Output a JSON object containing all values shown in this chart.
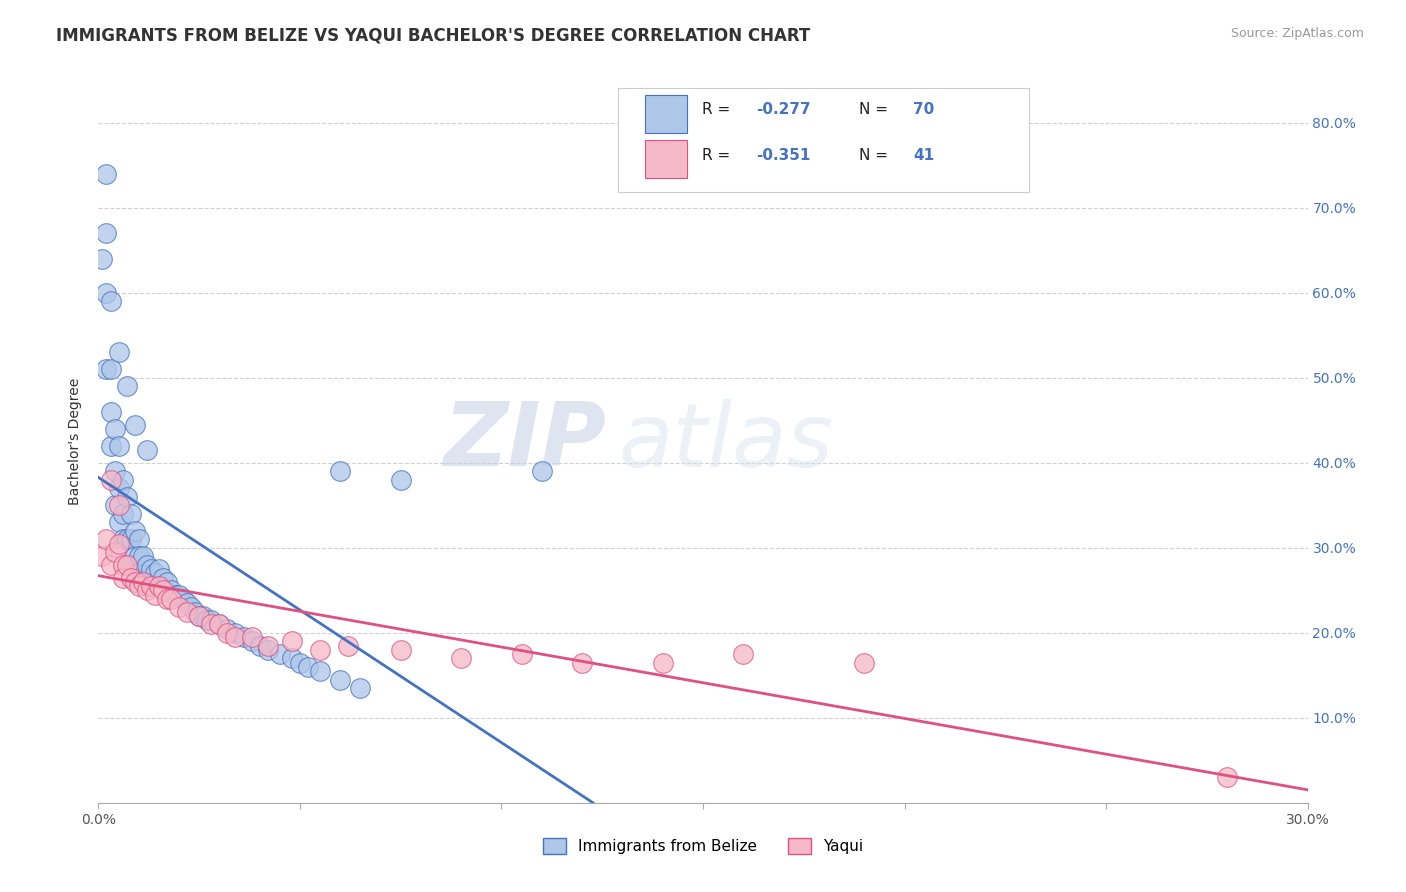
{
  "title": "IMMIGRANTS FROM BELIZE VS YAQUI BACHELOR'S DEGREE CORRELATION CHART",
  "source": "Source: ZipAtlas.com",
  "ylabel": "Bachelor's Degree",
  "watermark_zip": "ZIP",
  "watermark_atlas": "atlas",
  "legend_r1": "-0.277",
  "legend_n1": "70",
  "legend_r2": "-0.351",
  "legend_n2": "41",
  "xlim": [
    0.0,
    0.3
  ],
  "ylim": [
    0.0,
    0.85
  ],
  "color_belize": "#aec6e8",
  "color_yaqui": "#f4b8c8",
  "color_line_belize": "#4472c4",
  "color_line_yaqui": "#e05080",
  "label_belize": "Immigrants from Belize",
  "label_yaqui": "Yaqui",
  "belize_x": [
    0.001,
    0.002,
    0.002,
    0.003,
    0.003,
    0.003,
    0.004,
    0.004,
    0.004,
    0.005,
    0.005,
    0.005,
    0.006,
    0.006,
    0.006,
    0.007,
    0.007,
    0.008,
    0.008,
    0.008,
    0.009,
    0.009,
    0.01,
    0.01,
    0.01,
    0.011,
    0.011,
    0.012,
    0.012,
    0.013,
    0.014,
    0.015,
    0.015,
    0.016,
    0.017,
    0.018,
    0.019,
    0.02,
    0.021,
    0.022,
    0.023,
    0.024,
    0.025,
    0.026,
    0.027,
    0.028,
    0.03,
    0.032,
    0.034,
    0.036,
    0.038,
    0.04,
    0.042,
    0.045,
    0.048,
    0.05,
    0.052,
    0.055,
    0.06,
    0.065,
    0.002,
    0.003,
    0.005,
    0.007,
    0.009,
    0.012,
    0.002,
    0.075,
    0.11,
    0.06
  ],
  "belize_y": [
    0.64,
    0.6,
    0.51,
    0.51,
    0.46,
    0.42,
    0.44,
    0.39,
    0.35,
    0.42,
    0.37,
    0.33,
    0.38,
    0.34,
    0.31,
    0.36,
    0.31,
    0.34,
    0.31,
    0.28,
    0.32,
    0.29,
    0.31,
    0.29,
    0.27,
    0.29,
    0.26,
    0.28,
    0.255,
    0.275,
    0.27,
    0.275,
    0.255,
    0.265,
    0.26,
    0.25,
    0.245,
    0.245,
    0.24,
    0.235,
    0.23,
    0.225,
    0.22,
    0.22,
    0.215,
    0.215,
    0.21,
    0.205,
    0.2,
    0.195,
    0.19,
    0.185,
    0.18,
    0.175,
    0.17,
    0.165,
    0.16,
    0.155,
    0.145,
    0.135,
    0.67,
    0.59,
    0.53,
    0.49,
    0.445,
    0.415,
    0.74,
    0.38,
    0.39,
    0.39
  ],
  "yaqui_x": [
    0.001,
    0.002,
    0.003,
    0.003,
    0.004,
    0.005,
    0.005,
    0.006,
    0.006,
    0.007,
    0.008,
    0.009,
    0.01,
    0.011,
    0.012,
    0.013,
    0.014,
    0.015,
    0.016,
    0.017,
    0.018,
    0.02,
    0.022,
    0.025,
    0.028,
    0.03,
    0.032,
    0.034,
    0.038,
    0.042,
    0.048,
    0.055,
    0.062,
    0.075,
    0.09,
    0.105,
    0.12,
    0.14,
    0.16,
    0.19,
    0.28
  ],
  "yaqui_y": [
    0.29,
    0.31,
    0.28,
    0.38,
    0.295,
    0.305,
    0.35,
    0.28,
    0.265,
    0.28,
    0.265,
    0.26,
    0.255,
    0.26,
    0.25,
    0.255,
    0.245,
    0.255,
    0.25,
    0.24,
    0.24,
    0.23,
    0.225,
    0.22,
    0.21,
    0.21,
    0.2,
    0.195,
    0.195,
    0.185,
    0.19,
    0.18,
    0.185,
    0.18,
    0.17,
    0.175,
    0.165,
    0.165,
    0.175,
    0.165,
    0.03
  ],
  "background_color": "#ffffff",
  "grid_color": "#d0d0d0",
  "title_fontsize": 12,
  "axis_fontsize": 10,
  "tick_fontsize": 10
}
